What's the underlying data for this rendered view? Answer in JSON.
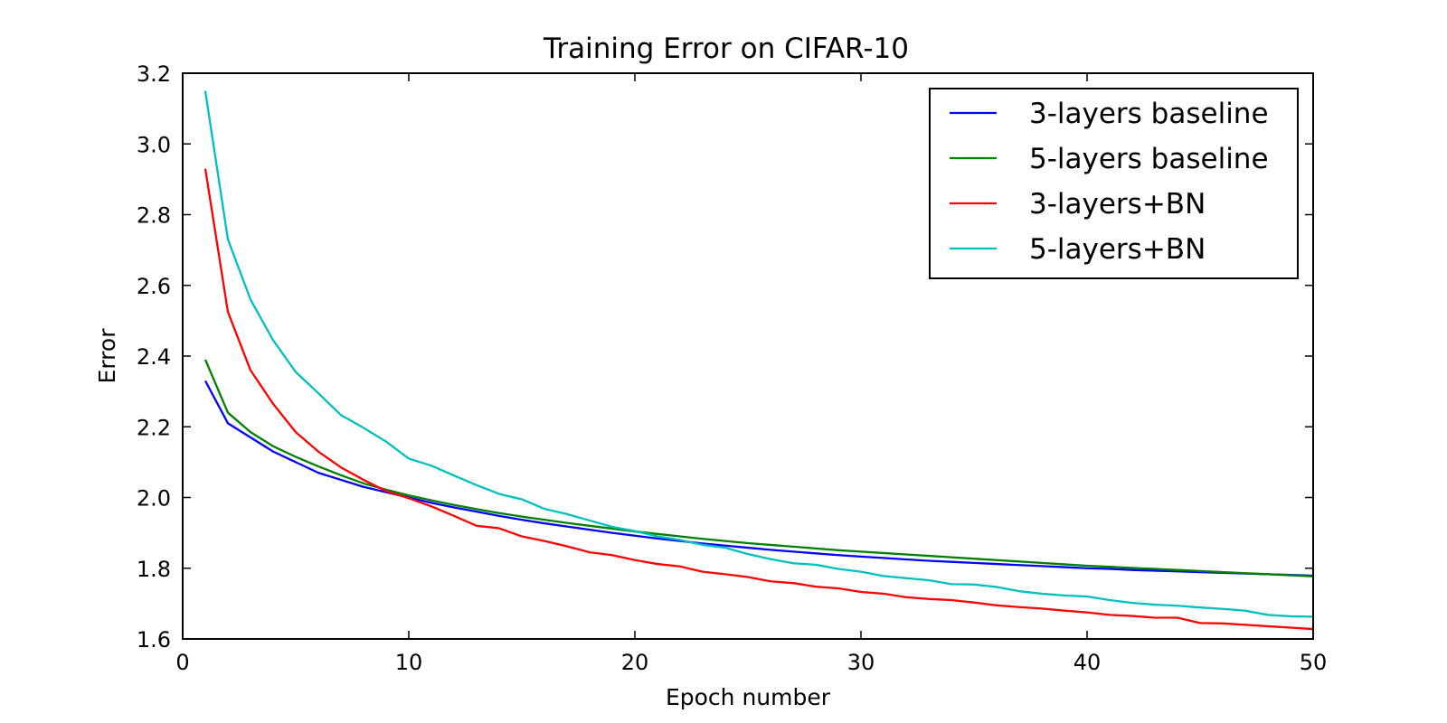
{
  "chart_data": {
    "type": "line",
    "title": "Training Error on CIFAR-10",
    "xlabel": "Epoch number",
    "ylabel": "Error",
    "xlim": [
      0,
      50
    ],
    "ylim": [
      1.6,
      3.2
    ],
    "xticks": [
      "0",
      "10",
      "20",
      "30",
      "40",
      "50"
    ],
    "yticks": [
      "1.6",
      "1.8",
      "2.0",
      "2.2",
      "2.4",
      "2.6",
      "2.8",
      "3.0",
      "3.2"
    ],
    "grid": false,
    "legend_position": "top-right",
    "x": [
      1,
      2,
      3,
      4,
      5,
      6,
      7,
      8,
      9,
      10,
      11,
      12,
      13,
      14,
      15,
      16,
      17,
      18,
      19,
      20,
      21,
      22,
      23,
      24,
      25,
      26,
      27,
      28,
      29,
      30,
      31,
      32,
      33,
      34,
      35,
      36,
      37,
      38,
      39,
      40,
      41,
      42,
      43,
      44,
      45,
      46,
      47,
      48,
      49,
      50
    ],
    "series": [
      {
        "name": "3-layers baseline",
        "color": "#0000ff",
        "values": [
          2.33,
          2.21,
          2.17,
          2.13,
          2.1,
          2.07,
          2.05,
          2.03,
          2.015,
          2.0,
          1.985,
          1.972,
          1.96,
          1.948,
          1.937,
          1.927,
          1.918,
          1.909,
          1.9,
          1.892,
          1.884,
          1.877,
          1.87,
          1.864,
          1.858,
          1.852,
          1.847,
          1.842,
          1.837,
          1.833,
          1.829,
          1.825,
          1.821,
          1.818,
          1.815,
          1.812,
          1.809,
          1.806,
          1.803,
          1.8,
          1.798,
          1.795,
          1.793,
          1.791,
          1.789,
          1.787,
          1.785,
          1.783,
          1.781,
          1.779
        ]
      },
      {
        "name": "5-layers baseline",
        "color": "#008000",
        "values": [
          2.39,
          2.24,
          2.185,
          2.145,
          2.115,
          2.088,
          2.063,
          2.04,
          2.022,
          2.006,
          1.992,
          1.979,
          1.967,
          1.956,
          1.946,
          1.937,
          1.928,
          1.92,
          1.912,
          1.904,
          1.897,
          1.89,
          1.883,
          1.877,
          1.871,
          1.866,
          1.861,
          1.856,
          1.851,
          1.847,
          1.843,
          1.839,
          1.835,
          1.831,
          1.827,
          1.823,
          1.819,
          1.815,
          1.811,
          1.807,
          1.804,
          1.801,
          1.798,
          1.795,
          1.792,
          1.789,
          1.786,
          1.783,
          1.78,
          1.777
        ]
      },
      {
        "name": "3-layers+BN",
        "color": "#ff0000",
        "values": [
          2.93,
          2.525,
          2.36,
          2.265,
          2.185,
          2.13,
          2.085,
          2.05,
          2.018,
          1.998,
          1.975,
          1.948,
          1.92,
          1.913,
          1.89,
          1.877,
          1.862,
          1.845,
          1.837,
          1.823,
          1.812,
          1.805,
          1.79,
          1.783,
          1.775,
          1.763,
          1.758,
          1.748,
          1.743,
          1.733,
          1.728,
          1.718,
          1.713,
          1.71,
          1.703,
          1.695,
          1.69,
          1.686,
          1.68,
          1.675,
          1.668,
          1.665,
          1.66,
          1.66,
          1.645,
          1.644,
          1.64,
          1.636,
          1.632,
          1.628
        ]
      },
      {
        "name": "5-layers+BN",
        "color": "#00bfbf",
        "values": [
          3.15,
          2.73,
          2.56,
          2.445,
          2.355,
          2.295,
          2.233,
          2.197,
          2.158,
          2.11,
          2.09,
          2.062,
          2.035,
          2.01,
          1.995,
          1.968,
          1.953,
          1.935,
          1.917,
          1.905,
          1.89,
          1.88,
          1.866,
          1.858,
          1.84,
          1.826,
          1.814,
          1.81,
          1.798,
          1.79,
          1.778,
          1.772,
          1.766,
          1.755,
          1.754,
          1.747,
          1.735,
          1.728,
          1.723,
          1.72,
          1.71,
          1.702,
          1.697,
          1.694,
          1.689,
          1.685,
          1.68,
          1.668,
          1.664,
          1.663
        ]
      }
    ]
  }
}
